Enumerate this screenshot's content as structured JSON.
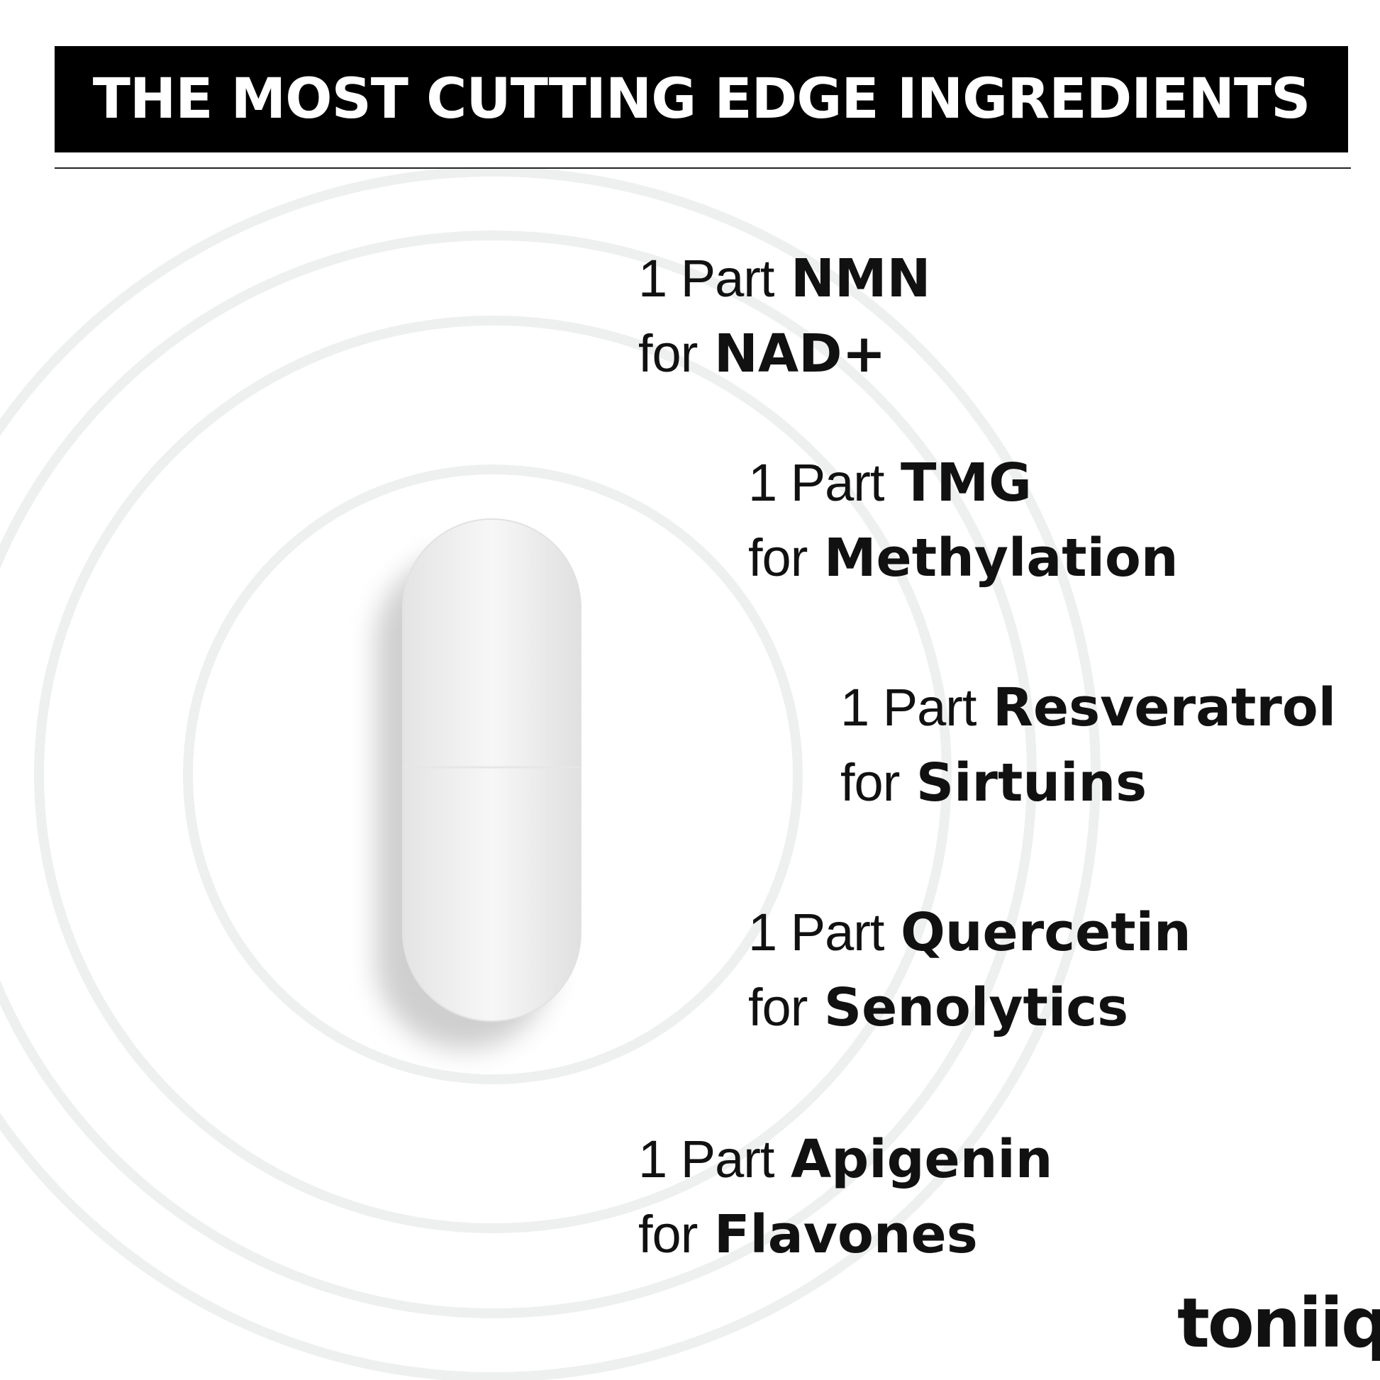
{
  "header": {
    "title": "THE MOST CUTTING EDGE INGREDIENTS"
  },
  "ingredients": [
    {
      "part": "1 Part",
      "name": "NMN",
      "for": "for",
      "benefit": "NAD+"
    },
    {
      "part": "1 Part",
      "name": "TMG",
      "for": "for",
      "benefit": "Methylation"
    },
    {
      "part": "1 Part",
      "name": "Resveratrol",
      "for": "for",
      "benefit": "Sirtuins"
    },
    {
      "part": "1 Part",
      "name": "Quercetin",
      "for": "for",
      "benefit": "Senolytics"
    },
    {
      "part": "1 Part",
      "name": "Apigenin",
      "for": "for",
      "benefit": "Flavones"
    }
  ],
  "brand": {
    "logo": "toniiq"
  }
}
